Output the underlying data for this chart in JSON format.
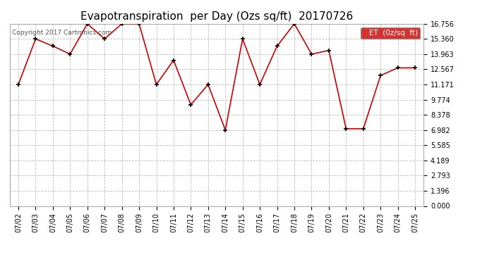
{
  "title": "Evapotranspiration  per Day (Ozs sq/ft)  20170726",
  "dates": [
    "07/02",
    "07/03",
    "07/04",
    "07/05",
    "07/06",
    "07/07",
    "07/08",
    "07/09",
    "07/10",
    "07/11",
    "07/12",
    "07/13",
    "07/14",
    "07/15",
    "07/16",
    "07/17",
    "07/18",
    "07/19",
    "07/20",
    "07/21",
    "07/22",
    "07/23",
    "07/24",
    "07/25"
  ],
  "values": [
    11.171,
    15.36,
    14.7,
    13.963,
    16.756,
    15.36,
    16.756,
    16.756,
    11.171,
    13.4,
    9.3,
    11.171,
    6.982,
    15.36,
    11.171,
    14.7,
    16.756,
    13.963,
    14.3,
    7.1,
    7.1,
    12.0,
    12.7,
    12.7
  ],
  "line_color": "#cc0000",
  "marker_color": "#000000",
  "legend_label": "ET  (0z/sq  ft)",
  "legend_bg": "#cc0000",
  "legend_text_color": "#ffffff",
  "copyright_text": "Copyright 2017 Cartronics.com",
  "yticks": [
    0.0,
    1.396,
    2.793,
    4.189,
    5.585,
    6.982,
    8.378,
    9.774,
    11.171,
    12.567,
    13.963,
    15.36,
    16.756
  ],
  "ylim": [
    0.0,
    16.756
  ],
  "bg_color": "#ffffff",
  "grid_color": "#bbbbbb",
  "title_fontsize": 11,
  "tick_fontsize": 7,
  "copyright_fontsize": 6.5
}
